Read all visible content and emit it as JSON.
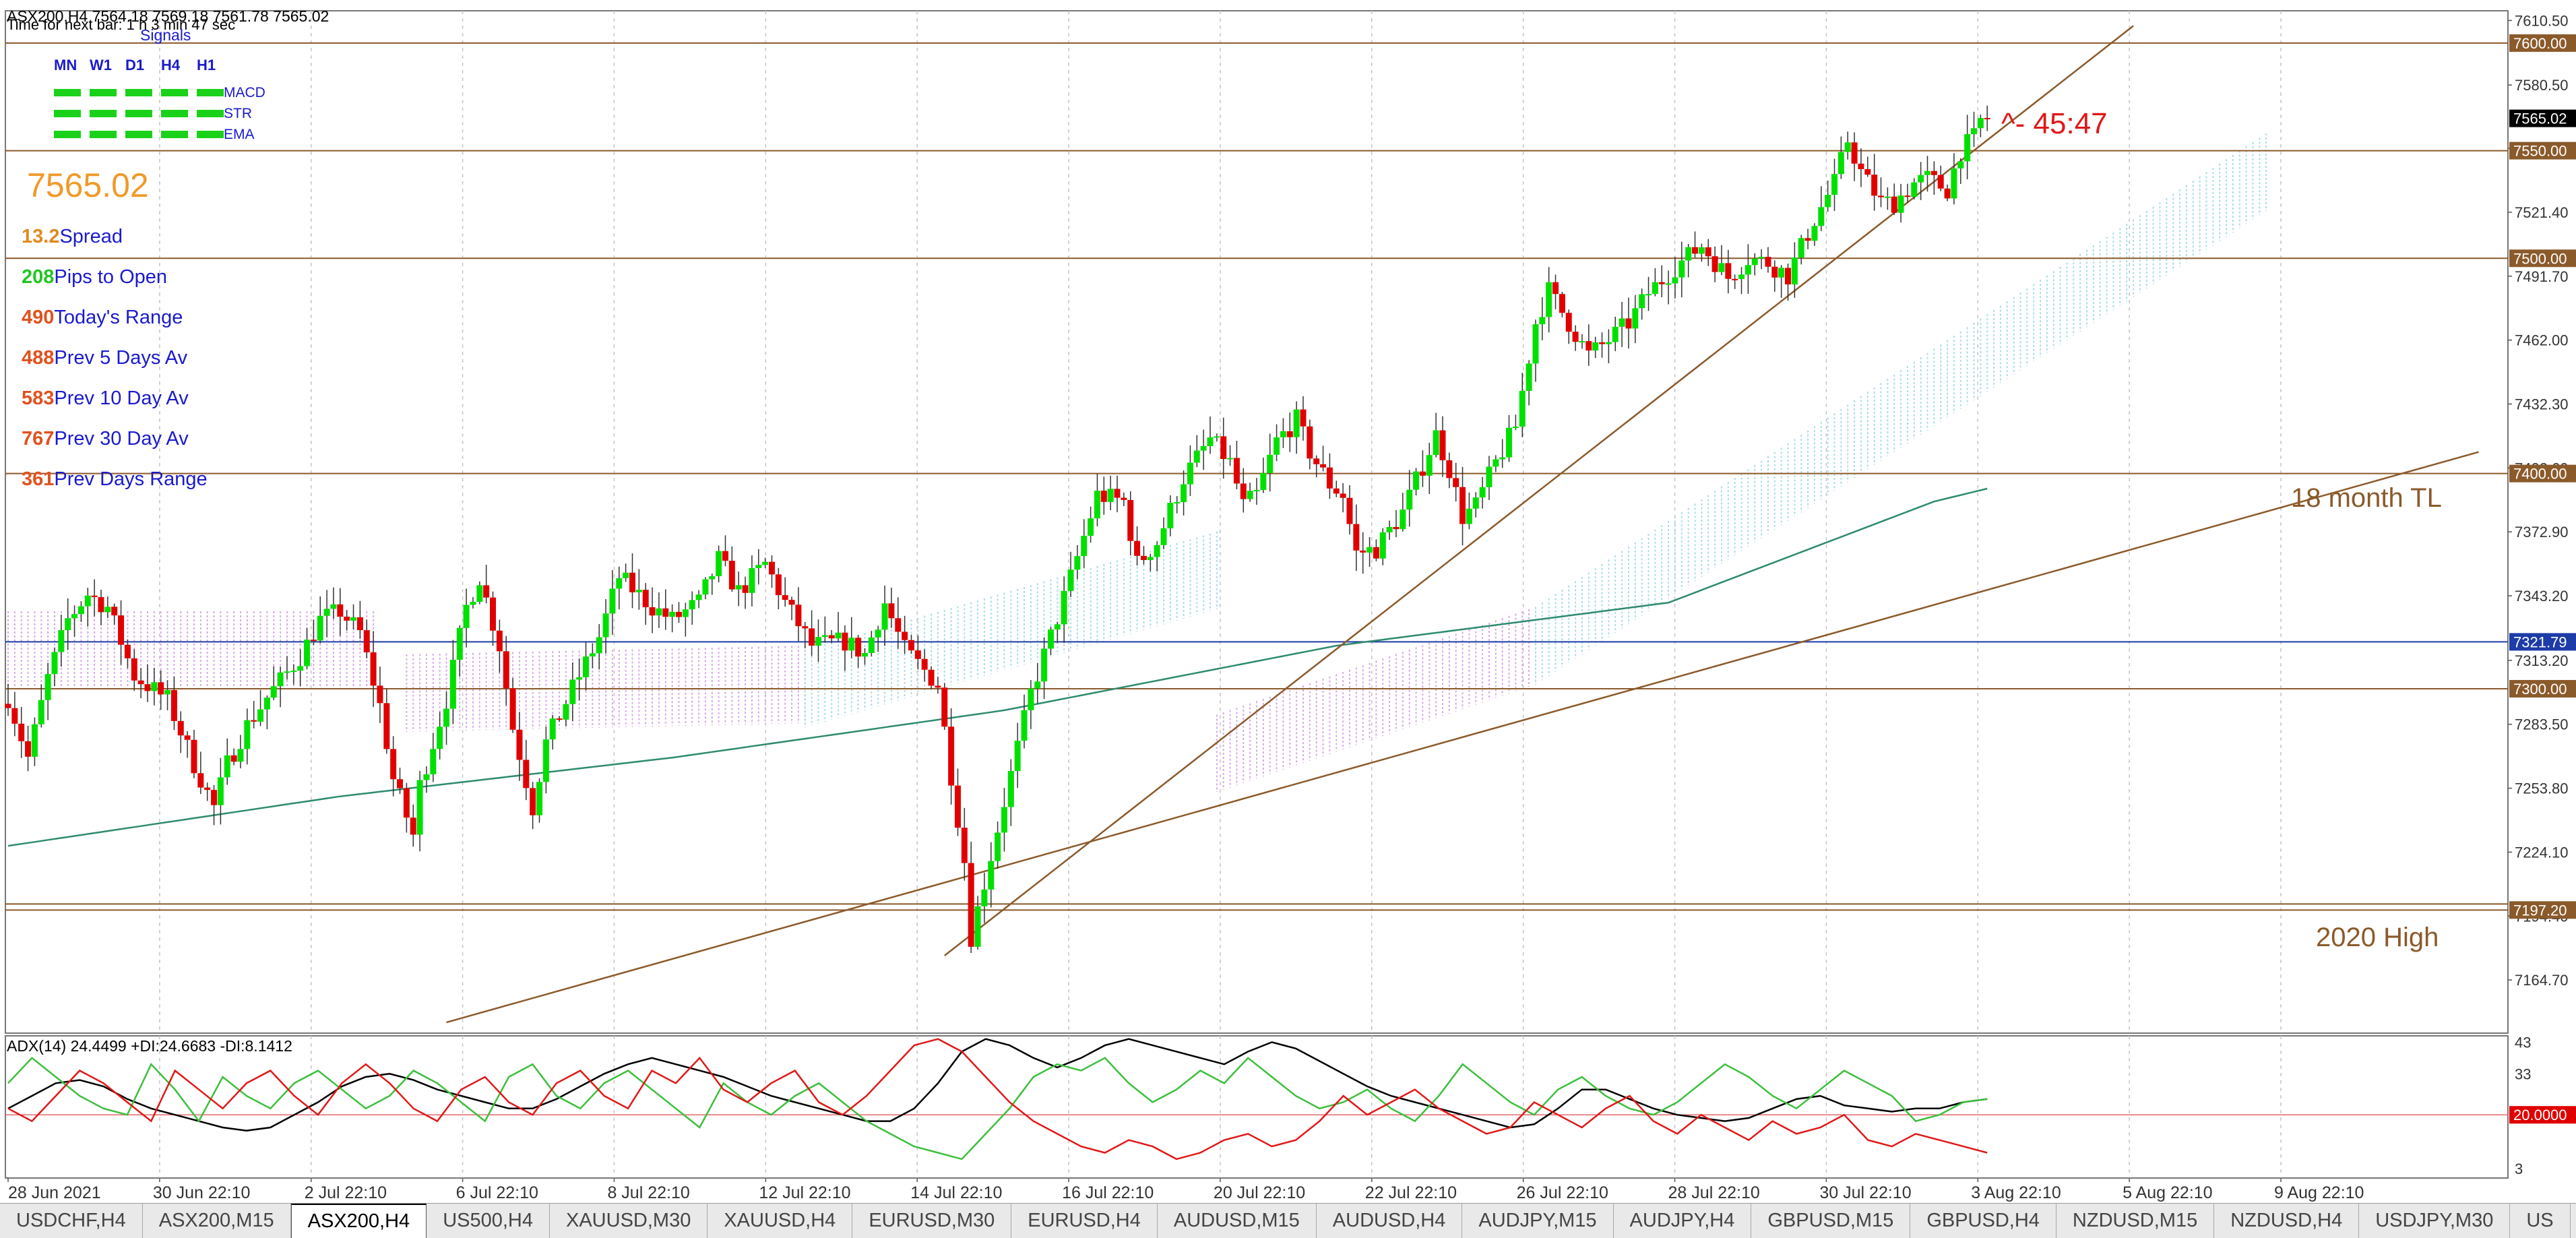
{
  "window": {
    "header": "ASX200,H4  7564.18 7569.18 7561.78 7565.02",
    "timer": "Time for next bar: 1 h 3 min 47 sec"
  },
  "signals": {
    "title": "Signals",
    "timeframes": [
      "MN",
      "W1",
      "D1",
      "H4",
      "H1"
    ],
    "rows": [
      "MACD",
      "STR",
      "EMA"
    ],
    "color": "#19d219"
  },
  "stats": {
    "price": "7565.02",
    "items": [
      {
        "value": "13.2",
        "label": "Spread",
        "value_color": "#e08a1e"
      },
      {
        "value": "208",
        "label": "Pips to Open",
        "value_color": "#22c622"
      },
      {
        "value": "490",
        "label": "Today's Range",
        "value_color": "#e0521e"
      },
      {
        "value": "488",
        "label": "Prev 5 Days Av",
        "value_color": "#e0521e"
      },
      {
        "value": "583",
        "label": "Prev 10 Day Av",
        "value_color": "#e0521e"
      },
      {
        "value": "767",
        "label": "Prev 30 Day Av",
        "value_color": "#e0521e"
      },
      {
        "value": "361",
        "label": "Prev Days Range",
        "value_color": "#e0521e"
      }
    ]
  },
  "annotations": {
    "countdown": "^- 45:47",
    "trendline_label": "18 month TL",
    "high_label": "2020 High"
  },
  "chart_data": {
    "type": "candlestick",
    "symbol": "ASX200",
    "timeframe": "H4",
    "ylim": [
      7140,
      7615
    ],
    "y_ticks": [
      "7610.50",
      "7580.50",
      "7551.10",
      "7521.40",
      "7491.70",
      "7462.00",
      "7432.30",
      "7402.60",
      "7372.90",
      "7343.20",
      "7313.20",
      "7283.50",
      "7253.80",
      "7224.10",
      "7194.40",
      "7164.70"
    ],
    "x_labels": [
      "28 Jun 2021",
      "30 Jun 22:10",
      "2 Jul 22:10",
      "6 Jul 22:10",
      "8 Jul 22:10",
      "12 Jul 22:10",
      "14 Jul 22:10",
      "16 Jul 22:10",
      "20 Jul 22:10",
      "22 Jul 22:10",
      "26 Jul 22:10",
      "28 Jul 22:10",
      "30 Jul 22:10",
      "3 Aug 22:10",
      "5 Aug 22:10",
      "9 Aug 22:10"
    ],
    "price_levels": [
      {
        "value": 7600.0,
        "label": "7600.00",
        "color": "#8b5a2b"
      },
      {
        "value": 7565.02,
        "label": "7565.02",
        "color": "#000000"
      },
      {
        "value": 7550.0,
        "label": "7550.00",
        "color": "#8b5a2b"
      },
      {
        "value": 7500.0,
        "label": "7500.00",
        "color": "#8b5a2b"
      },
      {
        "value": 7400.0,
        "label": "7400.00",
        "color": "#8b5a2b"
      },
      {
        "value": 7321.79,
        "label": "7321.79",
        "color": "#1e3ca8"
      },
      {
        "value": 7300.0,
        "label": "7300.00",
        "color": "#8b5a2b"
      },
      {
        "value": 7197.2,
        "label": "7197.20",
        "color": "#8b5a2b"
      }
    ],
    "close_path": [
      [
        0,
        7296
      ],
      [
        3,
        7268
      ],
      [
        6,
        7305
      ],
      [
        9,
        7332
      ],
      [
        12,
        7344
      ],
      [
        15,
        7338
      ],
      [
        19,
        7306
      ],
      [
        24,
        7295
      ],
      [
        28,
        7265
      ],
      [
        31,
        7245
      ],
      [
        33,
        7265
      ],
      [
        36,
        7283
      ],
      [
        39,
        7296
      ],
      [
        44,
        7315
      ],
      [
        47,
        7332
      ],
      [
        50,
        7336
      ],
      [
        53,
        7326
      ],
      [
        56,
        7292
      ],
      [
        58,
        7258
      ],
      [
        61,
        7232
      ],
      [
        62,
        7255
      ],
      [
        66,
        7295
      ],
      [
        69,
        7338
      ],
      [
        71,
        7352
      ],
      [
        74,
        7320
      ],
      [
        76,
        7282
      ],
      [
        79,
        7245
      ],
      [
        81,
        7275
      ],
      [
        85,
        7300
      ],
      [
        89,
        7324
      ],
      [
        92,
        7352
      ],
      [
        97,
        7338
      ],
      [
        100,
        7332
      ],
      [
        104,
        7340
      ],
      [
        107,
        7360
      ],
      [
        110,
        7345
      ],
      [
        114,
        7358
      ],
      [
        117,
        7340
      ],
      [
        121,
        7320
      ],
      [
        126,
        7322
      ],
      [
        129,
        7316
      ],
      [
        132,
        7340
      ],
      [
        135,
        7318
      ],
      [
        140,
        7302
      ],
      [
        142,
        7260
      ],
      [
        144,
        7220
      ],
      [
        145,
        7185
      ],
      [
        147,
        7210
      ],
      [
        151,
        7260
      ],
      [
        154,
        7298
      ],
      [
        158,
        7333
      ],
      [
        161,
        7361
      ],
      [
        164,
        7390
      ],
      [
        168,
        7387
      ],
      [
        170,
        7358
      ],
      [
        173,
        7368
      ],
      [
        177,
        7398
      ],
      [
        181,
        7416
      ],
      [
        184,
        7405
      ],
      [
        186,
        7385
      ],
      [
        188,
        7390
      ],
      [
        191,
        7415
      ],
      [
        194,
        7425
      ],
      [
        196,
        7410
      ],
      [
        199,
        7395
      ],
      [
        201,
        7390
      ],
      [
        203,
        7363
      ],
      [
        206,
        7365
      ],
      [
        210,
        7382
      ],
      [
        215,
        7418
      ],
      [
        217,
        7402
      ],
      [
        219,
        7380
      ],
      [
        221,
        7385
      ],
      [
        224,
        7405
      ],
      [
        227,
        7422
      ],
      [
        230,
        7470
      ],
      [
        232,
        7485
      ],
      [
        235,
        7470
      ],
      [
        238,
        7455
      ],
      [
        241,
        7462
      ],
      [
        244,
        7470
      ],
      [
        247,
        7484
      ],
      [
        251,
        7496
      ],
      [
        255,
        7506
      ],
      [
        259,
        7491
      ],
      [
        262,
        7500
      ],
      [
        265,
        7498
      ],
      [
        268,
        7492
      ],
      [
        272,
        7518
      ],
      [
        275,
        7535
      ],
      [
        277,
        7555
      ],
      [
        279,
        7540
      ],
      [
        282,
        7526
      ],
      [
        284,
        7526
      ],
      [
        287,
        7535
      ],
      [
        289,
        7537
      ],
      [
        292,
        7532
      ],
      [
        294,
        7550
      ],
      [
        296,
        7556
      ],
      [
        297,
        7564
      ],
      [
        298,
        7565
      ]
    ],
    "moving_average": [
      [
        0,
        7227
      ],
      [
        50,
        7250
      ],
      [
        100,
        7268
      ],
      [
        150,
        7290
      ],
      [
        200,
        7320
      ],
      [
        250,
        7340
      ],
      [
        290,
        7387
      ],
      [
        298,
        7393
      ]
    ],
    "trendlines": [
      {
        "name": "steep",
        "from": [
          141,
          7176
        ],
        "to": [
          320,
          7608
        ]
      },
      {
        "name": "18 month TL",
        "from": [
          66,
          7145
        ],
        "to": [
          372,
          7410
        ]
      }
    ],
    "cloud": [
      {
        "from": [
          0,
          7318
        ],
        "to": [
          55,
          7318
        ],
        "color": "#d8a8e8"
      },
      {
        "from": [
          60,
          7298
        ],
        "to": [
          120,
          7302
        ],
        "color": "#d8a8e8"
      },
      {
        "from": [
          120,
          7300
        ],
        "to": [
          182,
          7355
        ],
        "color": "#a8dce8"
      },
      {
        "from": [
          182,
          7270
        ],
        "to": [
          230,
          7320
        ],
        "color": "#d8a8e8"
      },
      {
        "from": [
          230,
          7320
        ],
        "to": [
          340,
          7540
        ],
        "color": "#a8dce8"
      }
    ],
    "subwindow": {
      "title": "ADX(14) 24.4499 +DI:24.6683 -DI:8.1412",
      "ylim": [
        0,
        45
      ],
      "y_ticks": [
        "43",
        "33",
        "3"
      ],
      "level": {
        "value": 20.0,
        "label": "20.0000"
      },
      "series": [
        {
          "name": "ADX(14)",
          "color": "#000000",
          "values": [
            22,
            26,
            30,
            31,
            29,
            25,
            22,
            20,
            18,
            16,
            15,
            16,
            20,
            24,
            29,
            32,
            33,
            31,
            28,
            26,
            24,
            22,
            22,
            25,
            29,
            33,
            36,
            38,
            36,
            34,
            32,
            29,
            26,
            24,
            22,
            20,
            18,
            18,
            22,
            30,
            40,
            44,
            42,
            38,
            35,
            38,
            42,
            44,
            42,
            40,
            38,
            36,
            40,
            43,
            41,
            37,
            33,
            29,
            26,
            24,
            22,
            20,
            18,
            16,
            17,
            22,
            28,
            28,
            25,
            22,
            20,
            19,
            18,
            19,
            22,
            25,
            26,
            23,
            22,
            21,
            22,
            22,
            24,
            25
          ]
        },
        {
          "name": "+DI",
          "color": "#3cbf3c",
          "values": [
            30,
            38,
            32,
            26,
            22,
            20,
            36,
            28,
            18,
            32,
            26,
            22,
            30,
            34,
            28,
            22,
            26,
            34,
            30,
            24,
            18,
            32,
            36,
            26,
            22,
            30,
            34,
            28,
            22,
            16,
            30,
            24,
            20,
            26,
            30,
            24,
            18,
            14,
            10,
            8,
            6,
            14,
            22,
            32,
            36,
            34,
            38,
            30,
            24,
            28,
            34,
            30,
            38,
            32,
            26,
            22,
            24,
            28,
            22,
            18,
            26,
            36,
            30,
            24,
            20,
            28,
            32,
            26,
            22,
            20,
            24,
            30,
            36,
            32,
            26,
            22,
            28,
            34,
            30,
            26,
            18,
            20,
            24,
            25
          ]
        },
        {
          "name": "-DI",
          "color": "#e01818",
          "values": [
            22,
            18,
            26,
            34,
            30,
            24,
            18,
            34,
            28,
            22,
            30,
            34,
            26,
            20,
            30,
            36,
            30,
            22,
            18,
            28,
            32,
            24,
            20,
            30,
            34,
            26,
            22,
            34,
            30,
            38,
            28,
            24,
            30,
            34,
            24,
            20,
            26,
            34,
            42,
            44,
            40,
            32,
            24,
            18,
            14,
            10,
            8,
            12,
            10,
            6,
            8,
            12,
            14,
            10,
            12,
            18,
            26,
            20,
            24,
            28,
            22,
            18,
            14,
            16,
            24,
            20,
            16,
            22,
            26,
            18,
            14,
            20,
            16,
            12,
            18,
            14,
            16,
            20,
            12,
            10,
            14,
            12,
            10,
            8
          ]
        }
      ]
    }
  },
  "tabs": [
    {
      "label": "USDCHF,H4",
      "active": false
    },
    {
      "label": "ASX200,M15",
      "active": false
    },
    {
      "label": "ASX200,H4",
      "active": true
    },
    {
      "label": "US500,H4",
      "active": false
    },
    {
      "label": "XAUUSD,M30",
      "active": false
    },
    {
      "label": "XAUUSD,H4",
      "active": false
    },
    {
      "label": "EURUSD,M30",
      "active": false
    },
    {
      "label": "EURUSD,H4",
      "active": false
    },
    {
      "label": "AUDUSD,M15",
      "active": false
    },
    {
      "label": "AUDUSD,H4",
      "active": false
    },
    {
      "label": "AUDJPY,M15",
      "active": false
    },
    {
      "label": "AUDJPY,H4",
      "active": false
    },
    {
      "label": "GBPUSD,M15",
      "active": false
    },
    {
      "label": "GBPUSD,H4",
      "active": false
    },
    {
      "label": "NZDUSD,M15",
      "active": false
    },
    {
      "label": "NZDUSD,H4",
      "active": false
    },
    {
      "label": "USDJPY,M30",
      "active": false
    },
    {
      "label": "US",
      "active": false
    }
  ],
  "colors": {
    "bull": "#00e000",
    "bear": "#e00000",
    "level": "#8b5a2b",
    "label_blue": "#1a1acd",
    "price_orange": "#f09a28",
    "countdown_red": "#e01818",
    "ma": "#2e8b6e",
    "grid": "#c4c4c4"
  }
}
